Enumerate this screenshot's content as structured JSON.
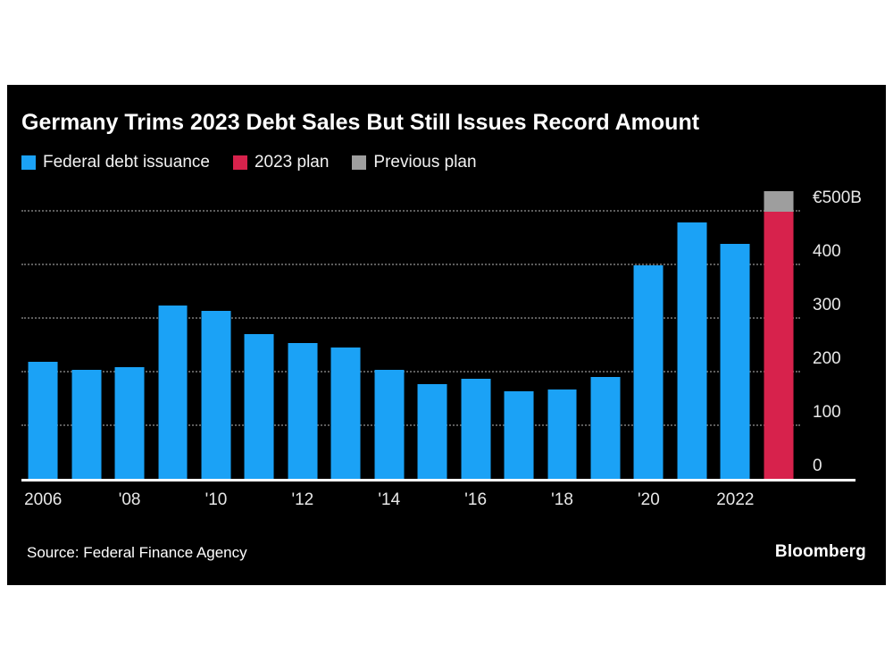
{
  "title": "Germany Trims 2023 Debt Sales But Still Issues Record Amount",
  "legend": {
    "items": [
      {
        "label": "Federal debt issuance",
        "color": "#1ba2f6"
      },
      {
        "label": "2023 plan",
        "color": "#d7224c"
      },
      {
        "label": "Previous plan",
        "color": "#9e9e9e"
      }
    ]
  },
  "footer": {
    "source": "Source: Federal Finance Agency",
    "brand": "Bloomberg"
  },
  "colors": {
    "page_background": "#ffffff",
    "panel_background": "#000000",
    "text": "#ffffff",
    "gridline": "#5d5d5d",
    "baseline": "#ffffff"
  },
  "chart_data": {
    "type": "bar",
    "title": "Germany Trims 2023 Debt Sales But Still Issues Record Amount",
    "unit": "billion EUR",
    "ylim": [
      0,
      550
    ],
    "grid": "dotted horizontal",
    "legend_position": "top-left",
    "categories": [
      "2006",
      "2007",
      "2008",
      "2009",
      "2010",
      "2011",
      "2012",
      "2013",
      "2014",
      "2015",
      "2016",
      "2017",
      "2018",
      "2019",
      "2020",
      "2021",
      "2022",
      "2023"
    ],
    "series": [
      {
        "name": "Federal debt issuance",
        "color": "#1ba2f6",
        "values": [
          220,
          205,
          210,
          325,
          315,
          272,
          255,
          247,
          205,
          178,
          188,
          165,
          168,
          192,
          400,
          480,
          440,
          0
        ]
      },
      {
        "name": "2023 plan",
        "color": "#d7224c",
        "values": [
          0,
          0,
          0,
          0,
          0,
          0,
          0,
          0,
          0,
          0,
          0,
          0,
          0,
          0,
          0,
          0,
          0,
          500
        ]
      },
      {
        "name": "Previous plan",
        "color": "#9e9e9e",
        "values": [
          0,
          0,
          0,
          0,
          0,
          0,
          0,
          0,
          0,
          0,
          0,
          0,
          0,
          0,
          0,
          0,
          0,
          39
        ]
      }
    ],
    "previous_plan_total": 539,
    "stacking_note": "2023 bar is stacked: red = 2023 plan (500), gray cap = remainder of previous plan up to 539",
    "yticks": [
      {
        "value": 0,
        "label": "0"
      },
      {
        "value": 100,
        "label": "100"
      },
      {
        "value": 200,
        "label": "200"
      },
      {
        "value": 300,
        "label": "300"
      },
      {
        "value": 400,
        "label": "400"
      },
      {
        "value": 500,
        "label": "€500B"
      }
    ],
    "x_tick_labels": [
      {
        "index": 0,
        "label": "2006"
      },
      {
        "index": 2,
        "label": "'08"
      },
      {
        "index": 4,
        "label": "'10"
      },
      {
        "index": 6,
        "label": "'12"
      },
      {
        "index": 8,
        "label": "'14"
      },
      {
        "index": 10,
        "label": "'16"
      },
      {
        "index": 12,
        "label": "'18"
      },
      {
        "index": 14,
        "label": "'20"
      },
      {
        "index": 16,
        "label": "2022"
      }
    ]
  }
}
